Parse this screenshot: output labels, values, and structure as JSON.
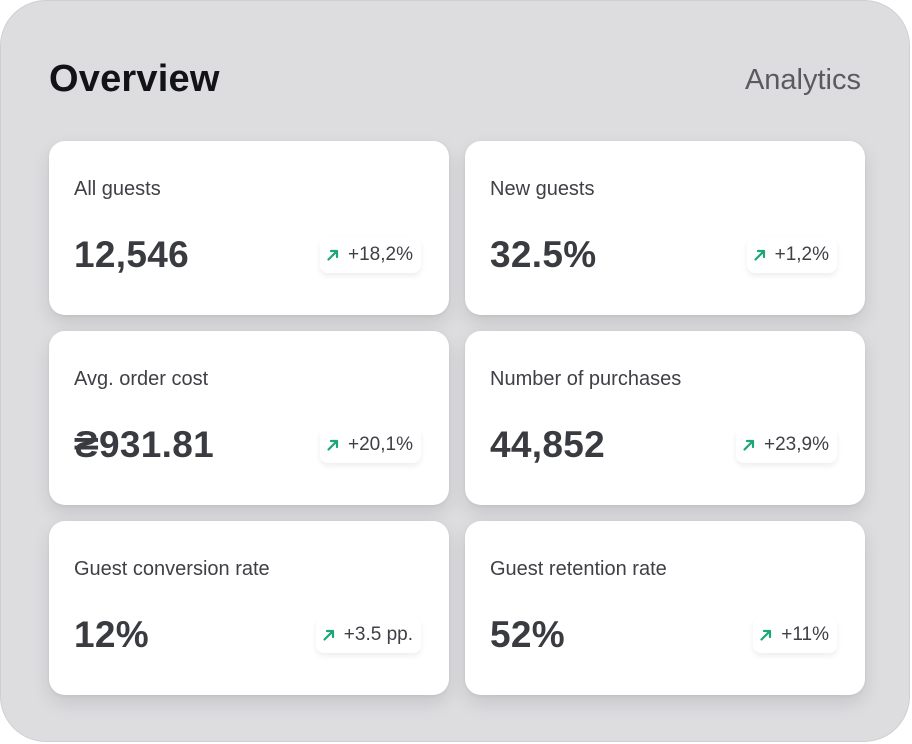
{
  "header": {
    "title": "Overview",
    "subtitle": "Analytics"
  },
  "colors": {
    "trend_up": "#1ea67a",
    "panel_bg": "#dddcdf",
    "card_bg": "#ffffff"
  },
  "cards": [
    {
      "label": "All guests",
      "value": "12,546",
      "change": "+18,2%",
      "icon": "arrow-up-right-icon"
    },
    {
      "label": "New guests",
      "value": "32.5%",
      "change": "+1,2%",
      "icon": "arrow-up-right-icon"
    },
    {
      "label": "Avg. order cost",
      "value": "₴931.81",
      "change": "+20,1%",
      "icon": "arrow-up-right-icon"
    },
    {
      "label": "Number of purchases",
      "value": "44,852",
      "change": "+23,9%",
      "icon": "arrow-up-right-icon"
    },
    {
      "label": "Guest conversion rate",
      "value": "12%",
      "change": "+3.5 pp.",
      "icon": "arrow-up-right-icon"
    },
    {
      "label": "Guest retention rate",
      "value": "52%",
      "change": "+11%",
      "icon": "arrow-up-right-icon"
    }
  ]
}
